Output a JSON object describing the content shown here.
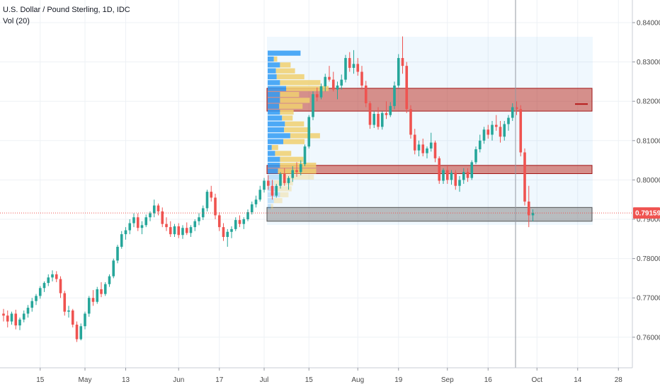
{
  "header": {
    "symbol_title": "U.S. Dollar / Pound Sterling, 1D, IDC",
    "indicator": "Vol (20)"
  },
  "colors": {
    "up": "#26a69a",
    "down": "#ef5350",
    "grid": "#eef1f5",
    "axis_text": "#4a4a4a",
    "last_price_bg": "#ef5350",
    "profile_up": "#2f9bf5",
    "profile_down": "#f0d070",
    "zone_red": "#c0392b",
    "zone_gray": "#808080"
  },
  "chart_data": {
    "type": "candlestick",
    "title": "U.S. Dollar / Pound Sterling, 1D, IDC",
    "y_axis": {
      "range": [
        0.7535,
        0.8425
      ],
      "ticks": [
        "0.84000",
        "0.83000",
        "0.82000",
        "0.81000",
        "0.80000",
        "0.79000",
        "0.78000",
        "0.77000",
        "0.76000"
      ],
      "tick_values": [
        0.84,
        0.83,
        0.82,
        0.81,
        0.8,
        0.79,
        0.78,
        0.77,
        0.76
      ]
    },
    "x_axis": {
      "ticks": [
        "15",
        "May",
        "13",
        "Jun",
        "17",
        "Jul",
        "15",
        "Aug",
        "19",
        "Sep",
        "16",
        "Oct",
        "14",
        "28"
      ],
      "tick_bar_index": [
        9,
        20,
        30,
        43,
        53,
        64,
        75,
        87,
        97,
        109,
        119,
        131,
        141,
        151
      ]
    },
    "last_price": "0.79159",
    "last_price_value": 0.79159,
    "crosshair_bar_index": 124,
    "candles": [
      [
        0.766,
        0.7672,
        0.764,
        0.7655
      ],
      [
        0.7655,
        0.7668,
        0.7625,
        0.764
      ],
      [
        0.764,
        0.7665,
        0.7632,
        0.766
      ],
      [
        0.766,
        0.767,
        0.762,
        0.763
      ],
      [
        0.763,
        0.765,
        0.7618,
        0.7645
      ],
      [
        0.7645,
        0.7668,
        0.7638,
        0.766
      ],
      [
        0.766,
        0.7682,
        0.765,
        0.7675
      ],
      [
        0.7675,
        0.77,
        0.7665,
        0.7692
      ],
      [
        0.7692,
        0.771,
        0.7682,
        0.7705
      ],
      [
        0.7705,
        0.773,
        0.7698,
        0.7725
      ],
      [
        0.7725,
        0.7742,
        0.7715,
        0.7738
      ],
      [
        0.7738,
        0.776,
        0.773,
        0.7752
      ],
      [
        0.7752,
        0.777,
        0.7742,
        0.776
      ],
      [
        0.776,
        0.7768,
        0.774,
        0.7748
      ],
      [
        0.7748,
        0.7755,
        0.77,
        0.7712
      ],
      [
        0.7712,
        0.7718,
        0.7655,
        0.7665
      ],
      [
        0.7665,
        0.768,
        0.765,
        0.7668
      ],
      [
        0.7668,
        0.7672,
        0.7625,
        0.7632
      ],
      [
        0.7632,
        0.764,
        0.7588,
        0.7595
      ],
      [
        0.7595,
        0.7635,
        0.7592,
        0.7628
      ],
      [
        0.7628,
        0.7665,
        0.762,
        0.766
      ],
      [
        0.766,
        0.7705,
        0.7652,
        0.77
      ],
      [
        0.77,
        0.772,
        0.768,
        0.769
      ],
      [
        0.769,
        0.7728,
        0.7685,
        0.7722
      ],
      [
        0.7722,
        0.774,
        0.7702,
        0.771
      ],
      [
        0.771,
        0.774,
        0.7705,
        0.7735
      ],
      [
        0.7735,
        0.776,
        0.7728,
        0.7755
      ],
      [
        0.7755,
        0.78,
        0.775,
        0.7795
      ],
      [
        0.7795,
        0.7835,
        0.7788,
        0.783
      ],
      [
        0.783,
        0.787,
        0.7825,
        0.7862
      ],
      [
        0.7862,
        0.788,
        0.7848,
        0.7872
      ],
      [
        0.7872,
        0.79,
        0.7862,
        0.789
      ],
      [
        0.789,
        0.7915,
        0.788,
        0.7905
      ],
      [
        0.7905,
        0.7915,
        0.787,
        0.7878
      ],
      [
        0.7878,
        0.7895,
        0.7862,
        0.7885
      ],
      [
        0.7885,
        0.7912,
        0.788,
        0.7905
      ],
      [
        0.7905,
        0.792,
        0.7895,
        0.7915
      ],
      [
        0.7915,
        0.795,
        0.7905,
        0.7935
      ],
      [
        0.7935,
        0.794,
        0.791,
        0.792
      ],
      [
        0.792,
        0.793,
        0.788,
        0.7888
      ],
      [
        0.7888,
        0.7905,
        0.787,
        0.788
      ],
      [
        0.788,
        0.7895,
        0.7855,
        0.7862
      ],
      [
        0.7862,
        0.7888,
        0.7855,
        0.7882
      ],
      [
        0.7882,
        0.789,
        0.7852,
        0.786
      ],
      [
        0.786,
        0.7885,
        0.785,
        0.7878
      ],
      [
        0.7878,
        0.7892,
        0.786,
        0.7865
      ],
      [
        0.7865,
        0.7885,
        0.7855,
        0.788
      ],
      [
        0.788,
        0.79,
        0.787,
        0.7895
      ],
      [
        0.7895,
        0.7915,
        0.7885,
        0.7905
      ],
      [
        0.7905,
        0.7935,
        0.7898,
        0.7928
      ],
      [
        0.7928,
        0.7975,
        0.792,
        0.797
      ],
      [
        0.797,
        0.7985,
        0.7945,
        0.7955
      ],
      [
        0.7955,
        0.7965,
        0.79,
        0.791
      ],
      [
        0.791,
        0.7918,
        0.787,
        0.788
      ],
      [
        0.788,
        0.789,
        0.7845,
        0.7855
      ],
      [
        0.7855,
        0.7875,
        0.783,
        0.7868
      ],
      [
        0.7868,
        0.7882,
        0.7852,
        0.7875
      ],
      [
        0.7875,
        0.7905,
        0.787,
        0.7898
      ],
      [
        0.7898,
        0.791,
        0.788,
        0.7888
      ],
      [
        0.7888,
        0.7905,
        0.7875,
        0.79
      ],
      [
        0.79,
        0.7925,
        0.7895,
        0.7918
      ],
      [
        0.7918,
        0.7945,
        0.7912,
        0.7938
      ],
      [
        0.7938,
        0.796,
        0.793,
        0.795
      ],
      [
        0.795,
        0.7985,
        0.7945,
        0.7975
      ],
      [
        0.7975,
        0.8005,
        0.7968,
        0.7998
      ],
      [
        0.7998,
        0.8012,
        0.7975,
        0.7985
      ],
      [
        0.7985,
        0.8,
        0.795,
        0.796
      ],
      [
        0.796,
        0.799,
        0.7955,
        0.7985
      ],
      [
        0.7985,
        0.802,
        0.7978,
        0.8015
      ],
      [
        0.8015,
        0.803,
        0.7985,
        0.7992
      ],
      [
        0.7992,
        0.801,
        0.7975,
        0.8005
      ],
      [
        0.8005,
        0.8035,
        0.7995,
        0.8025
      ],
      [
        0.8025,
        0.8045,
        0.8008,
        0.802
      ],
      [
        0.802,
        0.805,
        0.8012,
        0.804
      ],
      [
        0.804,
        0.809,
        0.8035,
        0.8085
      ],
      [
        0.8085,
        0.8165,
        0.808,
        0.816
      ],
      [
        0.816,
        0.8225,
        0.8152,
        0.8218
      ],
      [
        0.8218,
        0.8235,
        0.82,
        0.821
      ],
      [
        0.821,
        0.8245,
        0.8205,
        0.8238
      ],
      [
        0.8238,
        0.827,
        0.8225,
        0.8262
      ],
      [
        0.8262,
        0.829,
        0.825,
        0.8255
      ],
      [
        0.8255,
        0.8275,
        0.8225,
        0.823
      ],
      [
        0.823,
        0.825,
        0.8205,
        0.824
      ],
      [
        0.824,
        0.8268,
        0.823,
        0.8255
      ],
      [
        0.8255,
        0.8318,
        0.8248,
        0.831
      ],
      [
        0.831,
        0.8325,
        0.8275,
        0.8285
      ],
      [
        0.8285,
        0.833,
        0.827,
        0.8295
      ],
      [
        0.8295,
        0.831,
        0.8265,
        0.8275
      ],
      [
        0.8275,
        0.829,
        0.823,
        0.824
      ],
      [
        0.824,
        0.8252,
        0.8185,
        0.8195
      ],
      [
        0.8195,
        0.82,
        0.813,
        0.814
      ],
      [
        0.814,
        0.8175,
        0.8132,
        0.8168
      ],
      [
        0.8168,
        0.8185,
        0.8128,
        0.8135
      ],
      [
        0.8135,
        0.8175,
        0.8128,
        0.817
      ],
      [
        0.817,
        0.82,
        0.8155,
        0.8165
      ],
      [
        0.8165,
        0.8198,
        0.816,
        0.8188
      ],
      [
        0.8188,
        0.825,
        0.818,
        0.824
      ],
      [
        0.824,
        0.832,
        0.8235,
        0.831
      ],
      [
        0.831,
        0.8365,
        0.827,
        0.829
      ],
      [
        0.829,
        0.83,
        0.817,
        0.818
      ],
      [
        0.818,
        0.819,
        0.8105,
        0.8115
      ],
      [
        0.8115,
        0.813,
        0.8065,
        0.8075
      ],
      [
        0.8075,
        0.81,
        0.806,
        0.809
      ],
      [
        0.809,
        0.8105,
        0.806,
        0.8068
      ],
      [
        0.8068,
        0.8085,
        0.8055,
        0.808
      ],
      [
        0.808,
        0.812,
        0.8072,
        0.8095
      ],
      [
        0.8095,
        0.81,
        0.8045,
        0.8055
      ],
      [
        0.8055,
        0.806,
        0.799,
        0.7998
      ],
      [
        0.7998,
        0.803,
        0.799,
        0.8025
      ],
      [
        0.8025,
        0.8035,
        0.799,
        0.8
      ],
      [
        0.8,
        0.8025,
        0.7988,
        0.8018
      ],
      [
        0.8018,
        0.8025,
        0.7975,
        0.7985
      ],
      [
        0.7985,
        0.801,
        0.797,
        0.8
      ],
      [
        0.8,
        0.803,
        0.799,
        0.802
      ],
      [
        0.802,
        0.803,
        0.7995,
        0.8005
      ],
      [
        0.8005,
        0.805,
        0.8,
        0.8045
      ],
      [
        0.8045,
        0.8085,
        0.804,
        0.8078
      ],
      [
        0.8078,
        0.8115,
        0.807,
        0.81
      ],
      [
        0.81,
        0.8135,
        0.8092,
        0.8128
      ],
      [
        0.8128,
        0.814,
        0.8105,
        0.8115
      ],
      [
        0.8115,
        0.815,
        0.81,
        0.814
      ],
      [
        0.814,
        0.8165,
        0.8125,
        0.8135
      ],
      [
        0.8135,
        0.815,
        0.8095,
        0.811
      ],
      [
        0.811,
        0.815,
        0.81,
        0.8142
      ],
      [
        0.8142,
        0.8165,
        0.8125,
        0.8158
      ],
      [
        0.8158,
        0.8195,
        0.815,
        0.8185
      ],
      [
        0.8185,
        0.82,
        0.8165,
        0.818
      ],
      [
        0.818,
        0.819,
        0.806,
        0.807
      ],
      [
        0.807,
        0.808,
        0.7935,
        0.7945
      ],
      [
        0.7945,
        0.7985,
        0.788,
        0.791
      ],
      [
        0.791,
        0.7925,
        0.7895,
        0.7916
      ]
    ],
    "profile_bins": [
      [
        0.8317,
        0.8,
        0.0
      ],
      [
        0.8302,
        0.15,
        0.08
      ],
      [
        0.8287,
        0.3,
        0.25
      ],
      [
        0.8272,
        0.2,
        0.45
      ],
      [
        0.8257,
        0.22,
        0.65
      ],
      [
        0.8242,
        0.3,
        0.95
      ],
      [
        0.8227,
        0.45,
        1.0
      ],
      [
        0.8212,
        0.3,
        0.45
      ],
      [
        0.8197,
        0.3,
        0.7
      ],
      [
        0.8182,
        0.28,
        0.55
      ],
      [
        0.8167,
        0.3,
        0.32
      ],
      [
        0.8152,
        0.35,
        0.25
      ],
      [
        0.8137,
        0.42,
        0.45
      ],
      [
        0.8122,
        0.4,
        0.62
      ],
      [
        0.8107,
        0.55,
        0.7
      ],
      [
        0.8092,
        0.38,
        0.5
      ],
      [
        0.8077,
        0.1,
        0.15
      ],
      [
        0.8062,
        0.18,
        0.38
      ],
      [
        0.8047,
        0.3,
        0.55
      ],
      [
        0.8032,
        0.3,
        0.85
      ],
      [
        0.8017,
        0.25,
        0.9
      ],
      [
        0.8002,
        0.35,
        0.75
      ],
      [
        0.7987,
        0.15,
        0.45
      ],
      [
        0.7972,
        0.22,
        0.35
      ],
      [
        0.7957,
        0.3,
        0.2
      ],
      [
        0.7942,
        0.15,
        0.2
      ],
      [
        0.7927,
        0.08,
        0.05
      ]
    ],
    "zones": [
      {
        "top": 0.8233,
        "bottom": 0.8175,
        "color": "red"
      },
      {
        "top": 0.8037,
        "bottom": 0.8016,
        "color": "red"
      },
      {
        "top": 0.793,
        "bottom": 0.7895,
        "color": "gray"
      }
    ]
  }
}
